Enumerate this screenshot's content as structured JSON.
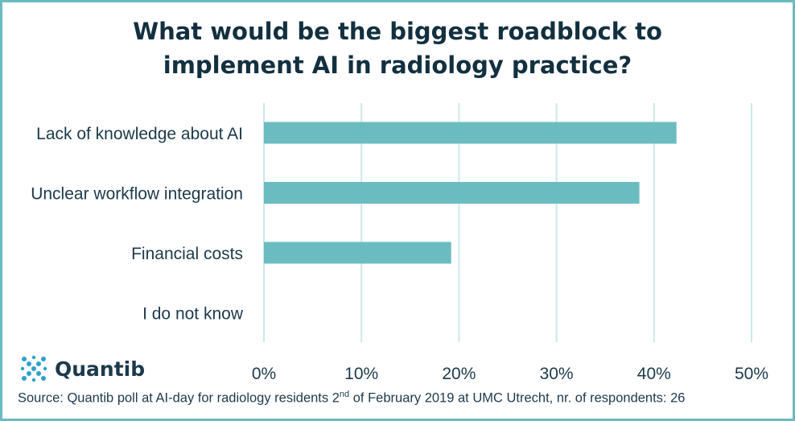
{
  "chart_data": {
    "type": "bar",
    "orientation": "horizontal",
    "title_lines": [
      "What would be the biggest roadblock to",
      "implement AI in radiology practice?"
    ],
    "categories": [
      "Lack of knowledge about AI",
      "Unclear workflow integration",
      "Financial costs",
      "I do not know"
    ],
    "values": [
      42.3,
      38.5,
      19.2,
      0
    ],
    "xlim": [
      0,
      50
    ],
    "xticks": [
      "0%",
      "10%",
      "20%",
      "30%",
      "40%",
      "50%"
    ],
    "grid": true,
    "bar_color": "#6bbcc0",
    "grid_color": "#cde8ea"
  },
  "brand": {
    "name": "Quantib",
    "logo_color": "#2f9fcf"
  },
  "source": {
    "before": "Source: Quantib poll at AI-day for radiology residents 2",
    "sup": "nd",
    "after": " of February 2019 at UMC Utrecht, nr. of respondents: 26"
  }
}
